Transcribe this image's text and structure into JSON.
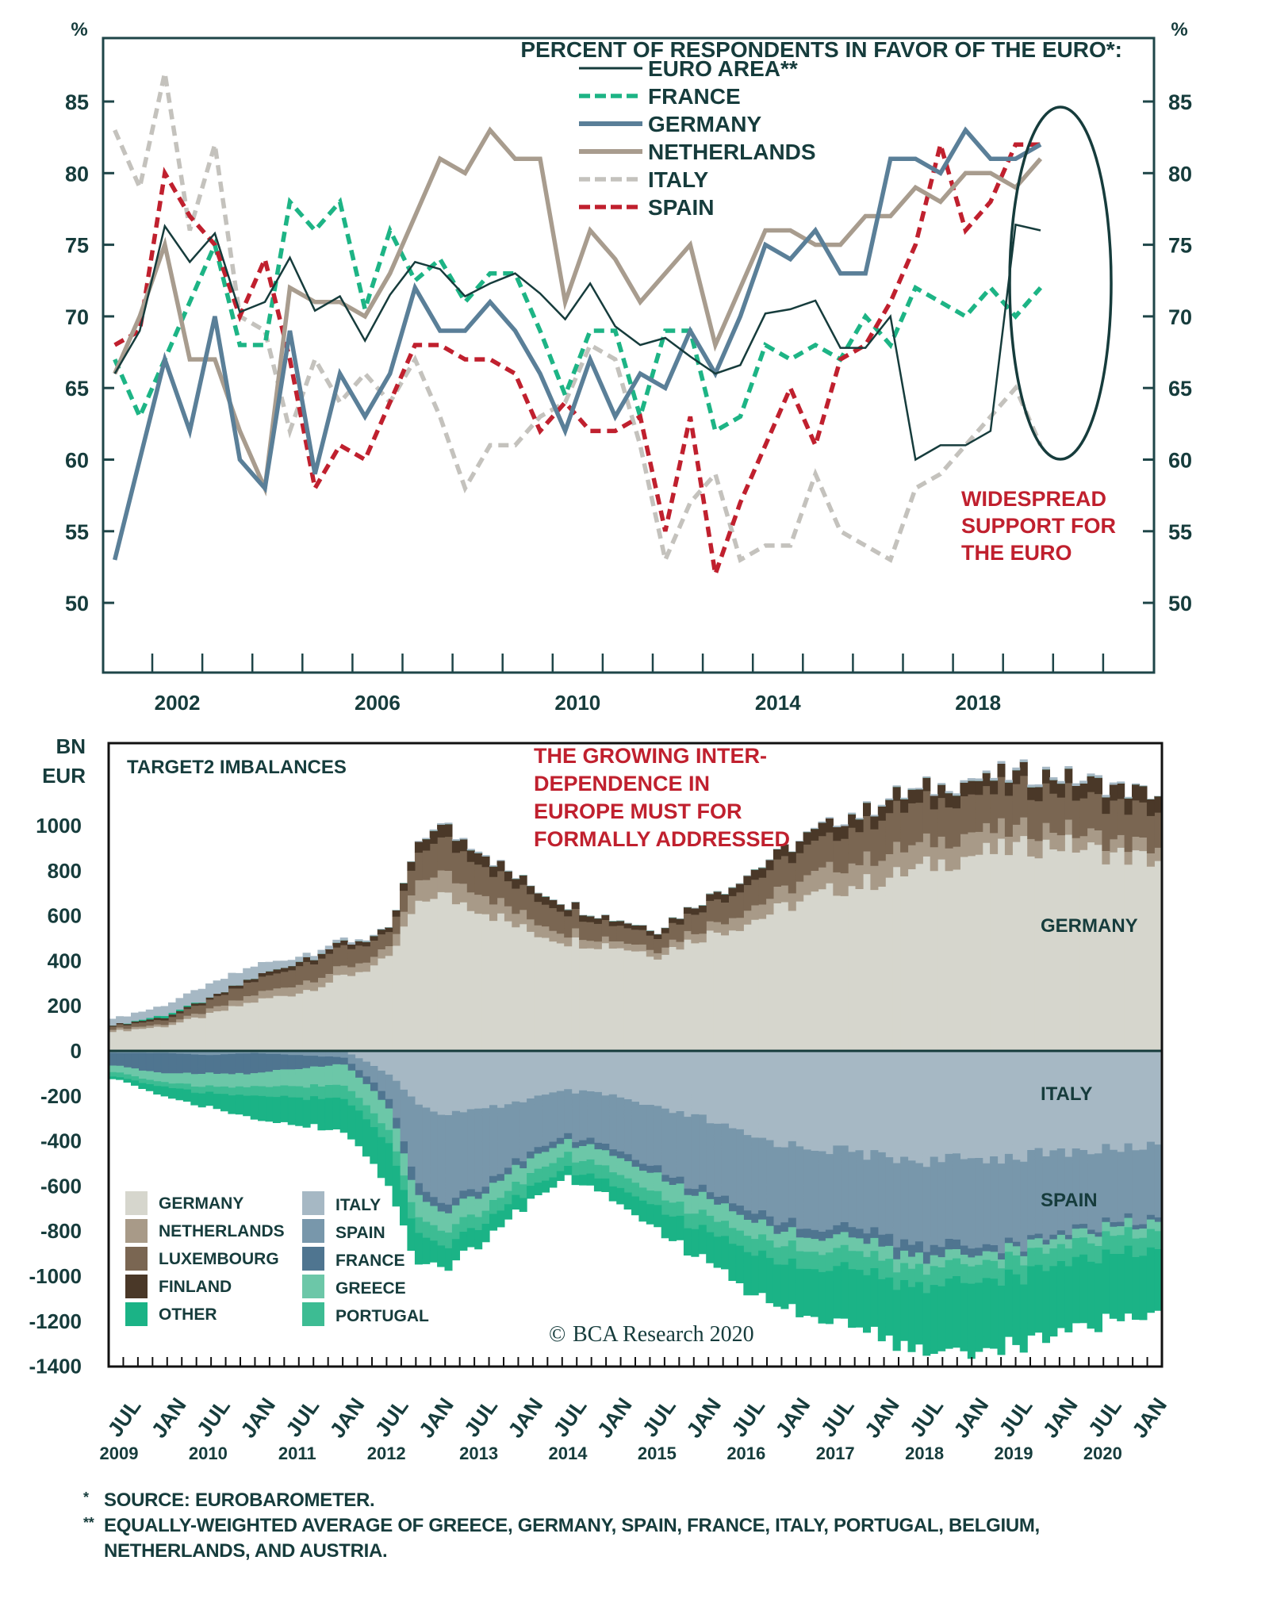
{
  "chart_data": [
    {
      "type": "line",
      "title": "PERCENT OF RESPONDENTS IN FAVOR OF THE EURO*:",
      "ylabel_left": "%",
      "ylabel_right": "%",
      "ylim": [
        45,
        89.6
      ],
      "yticks": [
        50,
        55,
        60,
        65,
        70,
        75,
        80,
        85
      ],
      "xlim": [
        2001.5,
        2022.0
      ],
      "xtick_labels": [
        "2002",
        "2006",
        "2010",
        "2014",
        "2018"
      ],
      "xtick_label_years": [
        2002,
        2006,
        2010,
        2014,
        2018
      ],
      "grid": false,
      "legend_position": "top-right",
      "annotation": [
        "WIDESPREAD",
        "SUPPORT FOR",
        "THE EURO"
      ],
      "highlight_ellipse_period": [
        2019.0,
        2020.0
      ],
      "x": [
        2001.25,
        2001.75,
        2002.25,
        2002.75,
        2003.25,
        2003.75,
        2004.25,
        2004.75,
        2005.25,
        2005.75,
        2006.25,
        2006.75,
        2007.25,
        2007.75,
        2008.25,
        2008.75,
        2009.25,
        2009.75,
        2010.25,
        2010.75,
        2011.25,
        2011.75,
        2012.25,
        2012.75,
        2013.25,
        2013.75,
        2014.25,
        2014.75,
        2015.25,
        2015.75,
        2016.25,
        2016.75,
        2017.25,
        2017.75,
        2018.25,
        2018.75,
        2019.25,
        2019.75,
        2020.25
      ],
      "series": [
        {
          "name": "EURO AREA**",
          "color": "#163c3c",
          "style": "solid-thin",
          "values": [
            66,
            69,
            76.3,
            73.8,
            75.8,
            70.3,
            71,
            74.1,
            70.4,
            71.4,
            68.3,
            71.5,
            73.8,
            73.3,
            71.4,
            72.3,
            73,
            71.6,
            69.8,
            72.3,
            69.3,
            68,
            68.5,
            67.2,
            66,
            66.6,
            70.2,
            70.5,
            71.1,
            67.8,
            67.8,
            70,
            60,
            61,
            61,
            62,
            76.4,
            76
          ],
          "x_offset_points": 0
        },
        {
          "name": "FRANCE",
          "color": "#1db485",
          "style": "dashed",
          "values": [
            67,
            63,
            67,
            71,
            75,
            68,
            68,
            78,
            76,
            78,
            70.5,
            76,
            72.5,
            74,
            71,
            73,
            73,
            69,
            64.5,
            69,
            69,
            63,
            69,
            69,
            62,
            63,
            68,
            67,
            68,
            67,
            70,
            68,
            72,
            71,
            70,
            72,
            70,
            72
          ]
        },
        {
          "name": "GERMANY",
          "color": "#5a7f98",
          "style": "solid-thick",
          "values": [
            53,
            60,
            67,
            62,
            70,
            60,
            58,
            69,
            59,
            66,
            63,
            66,
            72,
            69,
            69,
            71,
            69,
            66,
            62,
            67,
            63,
            66,
            65,
            69,
            66,
            70,
            75,
            74,
            76,
            73,
            73,
            81,
            81,
            80,
            83,
            81,
            81,
            82
          ]
        },
        {
          "name": "NETHERLANDS",
          "color": "#a89c8e",
          "style": "solid-thick",
          "values": [
            66,
            70,
            75,
            67,
            67,
            62,
            58,
            72,
            71,
            71,
            70,
            73,
            77,
            81,
            80,
            83,
            81,
            81,
            71,
            76,
            74,
            71,
            73,
            75,
            68,
            72,
            76,
            76,
            75,
            75,
            77,
            77,
            79,
            78,
            80,
            80,
            79,
            81
          ]
        },
        {
          "name": "ITALY",
          "color": "#c4c2bd",
          "style": "dashed",
          "values": [
            83,
            79,
            87,
            76,
            82,
            70,
            69,
            62,
            67,
            64,
            66,
            64,
            67,
            63,
            58,
            61,
            61,
            63,
            64,
            68,
            67,
            61,
            53,
            57,
            59,
            53,
            54,
            54,
            59,
            55,
            54,
            53,
            58,
            59,
            61,
            63,
            65,
            61
          ]
        },
        {
          "name": "SPAIN",
          "color": "#c0202e",
          "style": "dashed",
          "values": [
            68,
            69,
            80,
            77,
            75,
            70,
            74,
            67,
            58,
            61,
            60,
            64,
            68,
            68,
            67,
            67,
            66,
            62,
            64,
            62,
            62,
            63,
            55,
            63,
            52,
            57,
            61,
            65,
            61,
            67,
            68,
            71,
            75,
            82,
            76,
            78,
            82,
            82
          ]
        }
      ]
    },
    {
      "type": "area",
      "title": "TARGET2 IMBALANCES",
      "ylabel": [
        "BN",
        "EUR"
      ],
      "ylim": [
        -1400,
        1150
      ],
      "yticks": [
        1000,
        800,
        600,
        400,
        200,
        0,
        -200,
        -400,
        -600,
        -800,
        -1000,
        -1200,
        -1400
      ],
      "xlim": [
        2009.42,
        2021.17
      ],
      "xtick_labels": [
        "JUL",
        "JAN",
        "JUL",
        "JAN",
        "JUL",
        "JAN",
        "JUL",
        "JAN",
        "JUL",
        "JAN",
        "JUL",
        "JAN",
        "JUL",
        "JAN",
        "JUL",
        "JAN",
        "JUL",
        "JAN",
        "JUL",
        "JAN",
        "JUL",
        "JAN",
        "JUL",
        "JAN"
      ],
      "year_labels": [
        "2009",
        "2010",
        "2011",
        "2012",
        "2013",
        "2014",
        "2015",
        "2016",
        "2017",
        "2018",
        "2019",
        "2020"
      ],
      "annotation": [
        "THE GROWING INTER-",
        "DEPENDENCE IN",
        "EUROPE MUST FOR",
        "FORMALLY ADDRESSED"
      ],
      "inline_labels": {
        "germany": "GERMANY",
        "italy": "ITALY",
        "spain": "SPAIN"
      },
      "watermark": "BCA Research 2020",
      "legend_position": "bottom-left",
      "x": [
        2009.5,
        2010.0,
        2010.5,
        2011.0,
        2011.5,
        2012.0,
        2012.5,
        2012.75,
        2013.0,
        2013.5,
        2014.0,
        2014.5,
        2015.0,
        2015.5,
        2016.0,
        2016.5,
        2017.0,
        2017.5,
        2018.0,
        2018.5,
        2019.0,
        2019.5,
        2020.0,
        2020.5,
        2021.0
      ],
      "positive_series": [
        {
          "name": "GERMANY",
          "color": "#d6d6cd",
          "values": [
            90,
            110,
            160,
            220,
            260,
            330,
            400,
            600,
            700,
            640,
            540,
            490,
            470,
            430,
            510,
            570,
            650,
            720,
            760,
            820,
            870,
            900,
            920,
            880,
            850
          ]
        },
        {
          "name": "NETHERLANDS",
          "color": "#a89a88",
          "values": [
            10,
            10,
            20,
            30,
            40,
            40,
            40,
            80,
            100,
            80,
            60,
            40,
            30,
            30,
            40,
            60,
            80,
            100,
            110,
            100,
            100,
            80,
            70,
            60,
            60
          ]
        },
        {
          "name": "LUXEMBOURG",
          "color": "#7a6652",
          "values": [
            15,
            20,
            40,
            60,
            80,
            90,
            60,
            110,
            150,
            130,
            110,
            90,
            70,
            60,
            90,
            110,
            130,
            140,
            170,
            180,
            170,
            180,
            170,
            170,
            160
          ]
        },
        {
          "name": "FINLAND",
          "color": "#4a3828",
          "values": [
            5,
            10,
            10,
            15,
            20,
            20,
            20,
            40,
            60,
            50,
            40,
            30,
            20,
            20,
            30,
            40,
            50,
            60,
            60,
            60,
            60,
            60,
            60,
            70,
            70
          ]
        },
        {
          "name": "OTHER",
          "color": "#1bb386",
          "values": [
            0,
            10,
            0,
            0,
            0,
            0,
            0,
            0,
            0,
            0,
            0,
            0,
            0,
            0,
            0,
            0,
            0,
            0,
            0,
            0,
            0,
            0,
            0,
            0,
            0
          ]
        },
        {
          "name": "ITALY",
          "color": "#a6b8c4",
          "values": [
            30,
            40,
            60,
            50,
            20,
            10,
            0,
            0,
            5,
            5,
            0,
            0,
            0,
            0,
            0,
            0,
            0,
            5,
            5,
            5,
            10,
            10,
            10,
            10,
            0
          ]
        }
      ],
      "negative_series": [
        {
          "name": "ITALY",
          "color": "#a6b8c4",
          "values": [
            0,
            0,
            0,
            0,
            0,
            0,
            -100,
            -200,
            -280,
            -270,
            -220,
            -180,
            -200,
            -260,
            -300,
            -380,
            -420,
            -440,
            -470,
            -490,
            -480,
            -470,
            -450,
            -440,
            -420
          ]
        },
        {
          "name": "SPAIN",
          "color": "#7897ab",
          "values": [
            -10,
            -10,
            -20,
            -10,
            -20,
            -30,
            -100,
            -300,
            -400,
            -350,
            -250,
            -200,
            -230,
            -280,
            -320,
            -330,
            -350,
            -340,
            -350,
            -370,
            -380,
            -380,
            -360,
            -330,
            -330
          ]
        },
        {
          "name": "FRANCE",
          "color": "#4f7590",
          "values": [
            -60,
            -90,
            -80,
            -90,
            -60,
            -30,
            -40,
            -60,
            -40,
            -30,
            -30,
            -25,
            -30,
            -30,
            -30,
            -40,
            -40,
            -40,
            -50,
            -50,
            -40,
            -20,
            -20,
            -20,
            -20
          ]
        },
        {
          "name": "GREECE",
          "color": "#6cc7a8",
          "values": [
            -30,
            -40,
            -60,
            -60,
            -80,
            -90,
            -100,
            -100,
            -90,
            -80,
            -70,
            -60,
            -70,
            -80,
            -80,
            -70,
            -60,
            -60,
            -60,
            -50,
            -40,
            -40,
            -40,
            -40,
            -40
          ]
        },
        {
          "name": "PORTUGAL",
          "color": "#3dbc93",
          "values": [
            -20,
            -20,
            -30,
            -40,
            -50,
            -60,
            -60,
            -70,
            -70,
            -60,
            -60,
            -60,
            -60,
            -60,
            -70,
            -70,
            -80,
            -80,
            -80,
            -80,
            -80,
            -80,
            -80,
            -80,
            -80
          ]
        },
        {
          "name": "OTHER",
          "color": "#1bb386",
          "values": [
            -10,
            -40,
            -60,
            -100,
            -120,
            -140,
            -180,
            -150,
            -100,
            -80,
            -60,
            -40,
            -60,
            -100,
            -120,
            -180,
            -200,
            -240,
            -260,
            -290,
            -320,
            -310,
            -300,
            -300,
            -280
          ]
        }
      ]
    }
  ],
  "footnotes": [
    {
      "marker": "*",
      "text": "SOURCE: EUROBAROMETER."
    },
    {
      "marker": "**",
      "text": "EQUALLY-WEIGHTED AVERAGE OF GREECE, GERMANY, SPAIN, FRANCE, ITALY, PORTUGAL, BELGIUM,",
      "text2": "NETHERLANDS, AND AUSTRIA."
    }
  ]
}
